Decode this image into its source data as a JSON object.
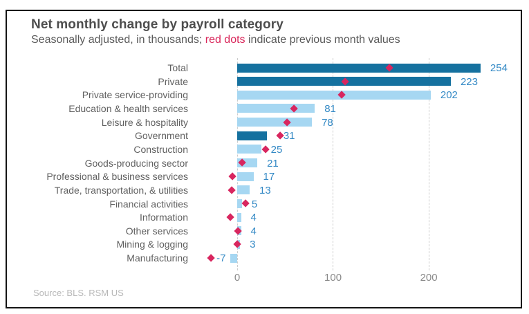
{
  "header": {
    "title": "Net monthly change by payroll category",
    "subtitle_prefix": "Seasonally adjusted, in thousands; ",
    "subtitle_highlight": "red dots",
    "subtitle_suffix": " indicate previous month values"
  },
  "source": "Source: BLS. RSM US",
  "chart_data": {
    "type": "bar",
    "orientation": "horizontal",
    "title": "Net monthly change by payroll category",
    "subtitle": "Seasonally adjusted, in thousands; red dots indicate previous month values",
    "categories": [
      "Total",
      "Private",
      "Private service-providing",
      "Education & health services",
      "Leisure & hospitality",
      "Government",
      "Construction",
      "Goods-producing sector",
      "Professional & business services",
      "Trade, transportation, & utilities",
      "Financial activities",
      "Information",
      "Other services",
      "Mining & logging",
      "Manufacturing"
    ],
    "series": [
      {
        "name": "current_month",
        "values": [
          254,
          223,
          202,
          81,
          78,
          31,
          25,
          21,
          17,
          13,
          5,
          4,
          4,
          3,
          -7
        ]
      },
      {
        "name": "previous_month_red_dots",
        "values": [
          159,
          113,
          109,
          59,
          52,
          45,
          30,
          5,
          -5,
          -6,
          9,
          -7,
          1,
          0,
          -27
        ]
      }
    ],
    "value_labels": [
      "254",
      "223",
      "202",
      "81",
      "78",
      "31",
      "25",
      "21",
      "17",
      "13",
      "5",
      "4",
      "4",
      "3",
      "-7"
    ],
    "emphasis_dark": [
      1,
      1,
      0,
      0,
      0,
      1,
      0,
      0,
      0,
      0,
      0,
      0,
      0,
      0,
      0
    ],
    "xticks": [
      0,
      100,
      200
    ],
    "xlim": [
      -30,
      300
    ],
    "grid": "dashed vertical lines at xticks",
    "legend": "none",
    "colors": {
      "bar_dark": "#15719f",
      "bar_light": "#a6d7f2",
      "dot": "#d8265f",
      "value_text": "#3389c5",
      "category_text": "#606060",
      "axis_text": "#8a8a8a",
      "grid": "#cccccc",
      "title_text": "#4d4d4d",
      "subtitle_text": "#595959",
      "subtitle_highlight": "#d9265a",
      "source_text": "#b8b8b8"
    }
  }
}
